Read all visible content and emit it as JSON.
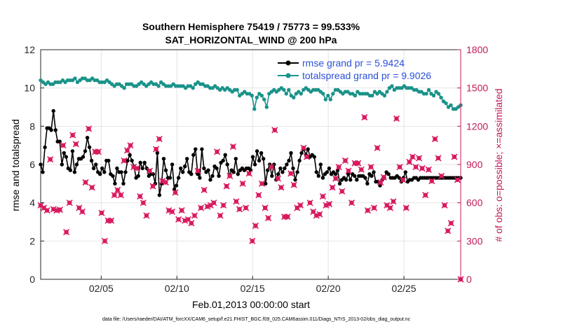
{
  "chart_data": {
    "type": "line",
    "title_line1": "Southern Hemisphere 75419 / 75773 = 99.533%",
    "title_line2": "SAT_HORIZONTAL_WIND @ 200 hPa",
    "xlabel": "Feb.01,2013 00:00:00 start",
    "ylabel_left": "rmse and totalspread",
    "ylabel_right": "# of obs: o=possible; ×=assimilated",
    "footnote": "data file: /Users/raeder/DAI/ATM_forcXX/CAM6_setup/f.e21.FHIST_BGC.f09_025.CAM6assim.011/Diags_NTrS_2013-02/obs_diag_output.nc",
    "x_range": [
      "2013-02-01 00:00",
      "2013-02-28 18:00"
    ],
    "x_ticks": [
      "02/05",
      "02/10",
      "02/15",
      "02/20",
      "02/25"
    ],
    "x_tick_dates": [
      "2013-02-05",
      "2013-02-10",
      "2013-02-15",
      "2013-02-20",
      "2013-02-25"
    ],
    "ylim_left": [
      0,
      12
    ],
    "yticks_left": [
      "0",
      "2",
      "4",
      "6",
      "8",
      "10",
      "12"
    ],
    "ylim_right": [
      0,
      1800
    ],
    "yticks_right": [
      "0",
      "300",
      "600",
      "900",
      "1200",
      "1500",
      "1800"
    ],
    "grid": true,
    "legend_position": "top-right",
    "colors": {
      "rmse": "#000000",
      "spread": "#1a9389",
      "obs": "#d81b60",
      "legend_text": "#2b50d8",
      "right_axis": "#c2185b"
    },
    "series": [
      {
        "name": "rmse grand pr = 5.9424",
        "axis": "left",
        "values": [
          6.0,
          5.6,
          6.9,
          7.9,
          7.9,
          7.8,
          8.8,
          7.8,
          7.2,
          7.2,
          6.0,
          6.6,
          6.4,
          5.8,
          5.7,
          6.7,
          5.6,
          6.0,
          6.3,
          6.3,
          6.4,
          6.7,
          7.4,
          6.9,
          6.2,
          5.8,
          6.0,
          5.6,
          5.5,
          5.8,
          5.6,
          6.2,
          6.2,
          5.5,
          5.4,
          5.0,
          5.8,
          5.6,
          5.6,
          5.0,
          5.6,
          6.2,
          6.5,
          6.2,
          5.9,
          5.3,
          5.4,
          6.1,
          5.8,
          6.1,
          5.8,
          5.4,
          5.5,
          5.5,
          5.0,
          6.6,
          4.4,
          5.0,
          6.3,
          5.7,
          5.3,
          5.3,
          6.0,
          4.7,
          4.9,
          5.3,
          5.8,
          5.6,
          5.9,
          6.3,
          5.6,
          5.5,
          6.5,
          6.8,
          5.5,
          5.3,
          6.8,
          5.8,
          5.6,
          5.7,
          5.2,
          5.4,
          5.9,
          5.8,
          5.4,
          6.1,
          6.2,
          6.5,
          6.0,
          5.4,
          5.7,
          5.6,
          6.3,
          5.5,
          5.7,
          5.8,
          5.7,
          5.8,
          5.8,
          5.7,
          6.4,
          6.0,
          6.7,
          6.2,
          6.6,
          6.3,
          5.0,
          5.7,
          6.0,
          5.4,
          6.0,
          5.2,
          5.5,
          5.8,
          5.6,
          5.8,
          6.0,
          6.2,
          6.6,
          5.8,
          5.2,
          5.6,
          6.2,
          6.6,
          6.8,
          6.5,
          6.8,
          6.4,
          6.5,
          6.4,
          5.6,
          5.4,
          6.0,
          5.3,
          5.5,
          5.6,
          5.8,
          5.5,
          5.6,
          5.5,
          5.7,
          5.0,
          5.2,
          5.3,
          5.2,
          5.5,
          5.2,
          5.5,
          5.4,
          5.2,
          5.4,
          5.4,
          5.4,
          5.3,
          5.0,
          5.5,
          5.4,
          5.6,
          5.1,
          5.1,
          4.9,
          5.2,
          5.3,
          5.6,
          5.5,
          5.3,
          5.3,
          5.3,
          5.4,
          5.3,
          5.1,
          5.3,
          5.6,
          5.1,
          5.2,
          5.2,
          5.3,
          5.3,
          5.2,
          5.3,
          5.3,
          5.3,
          5.3,
          5.3,
          5.3,
          5.3,
          5.3,
          5.3,
          5.3,
          5.3,
          5.3,
          5.3,
          5.3,
          5.3,
          5.3,
          5.3,
          5.3,
          5.3,
          5.3
        ]
      },
      {
        "name": "totalspread grand pr = 9.9026",
        "axis": "left",
        "values": [
          10.4,
          10.3,
          10.2,
          10.3,
          10.2,
          10.2,
          10.3,
          10.3,
          10.3,
          10.4,
          10.3,
          10.4,
          10.4,
          10.4,
          10.5,
          10.3,
          10.4,
          10.5,
          10.5,
          10.4,
          10.4,
          10.5,
          10.4,
          10.4,
          10.3,
          10.3,
          10.3,
          10.4,
          10.3,
          10.2,
          10.1,
          10.2,
          10.2,
          10.1,
          10.0,
          10.2,
          10.2,
          10.2,
          10.1,
          10.1,
          10.2,
          10.3,
          10.2,
          10.1,
          10.2,
          10.3,
          10.2,
          10.2,
          10.1,
          10.3,
          10.2,
          10.1,
          10.1,
          10.1,
          10.2,
          10.1,
          10.1,
          10.1,
          10.1,
          10.0,
          10.1,
          10.1,
          10.0,
          10.2,
          10.3,
          10.2,
          10.2,
          10.1,
          10.1,
          10.0,
          10.0,
          10.1,
          10.0,
          9.9,
          10.0,
          9.9,
          10.0,
          9.9,
          9.8,
          9.9,
          9.9,
          9.6,
          9.7,
          9.8,
          9.7,
          9.7,
          9.6,
          8.9,
          9.5,
          9.7,
          9.6,
          9.4,
          9.0,
          9.7,
          9.8,
          9.9,
          9.8,
          9.9,
          10.0,
          9.9,
          9.7,
          9.9,
          9.6,
          9.5,
          9.7,
          9.8,
          9.7,
          9.9,
          10.0,
          9.9,
          9.8,
          9.9,
          9.9,
          9.9,
          9.8,
          9.7,
          9.4,
          9.6,
          9.4,
          9.7,
          9.9,
          9.9,
          9.8,
          9.7,
          9.8,
          9.8,
          9.7,
          9.7,
          9.6,
          9.8,
          9.7,
          9.7,
          9.7,
          9.7,
          9.6,
          9.6,
          9.8,
          9.7,
          9.8,
          9.7,
          9.6,
          9.8,
          10.0,
          10.1,
          9.9,
          10.0,
          10.0,
          10.0,
          10.1,
          10.0,
          10.0,
          10.0,
          9.9,
          9.9,
          9.8,
          9.8,
          9.7,
          9.7,
          9.9,
          9.7,
          9.6,
          9.8,
          9.7,
          9.5,
          9.3,
          9.2,
          9.0,
          9.1,
          8.9,
          8.9,
          9.0,
          9.1
        ]
      },
      {
        "name": "assimilated obs",
        "axis": "right",
        "values": [
          580,
          560,
          540,
          940,
          550,
          540,
          545,
          1050,
          370,
          600,
          1130,
          1060,
          560,
          530,
          760,
          1180,
          720,
          1000,
          1000,
          520,
          300,
          460,
          460,
          660,
          700,
          660,
          930,
          1010,
          1050,
          880,
          870,
          650,
          600,
          500,
          850,
          730,
          1020,
          1100,
          770,
          760,
          540,
          530,
          680,
          470,
          540,
          460,
          470,
          440,
          500,
          850,
          560,
          700,
          570,
          580,
          600,
          1000,
          500,
          580,
          730,
          810,
          1040,
          610,
          550,
          750,
          560,
          830,
          300,
          420,
          660,
          750,
          560,
          480,
          880,
          1170,
          790,
          720,
          490,
          490,
          830,
          740,
          560,
          580,
          1030,
          960,
          600,
          530,
          500,
          510,
          650,
          580,
          590,
          720,
          790,
          880,
          690,
          930,
          850,
          600,
          910,
          910,
          860,
          1270,
          540,
          880,
          560,
          1030,
          760,
          800,
          580,
          560,
          610,
          1260,
          880,
          780,
          560,
          920,
          960,
          880,
          950,
          870,
          660,
          860,
          770,
          1100,
          950,
          810,
          580,
          380,
          440,
          960,
          780,
          0
        ]
      }
    ]
  }
}
